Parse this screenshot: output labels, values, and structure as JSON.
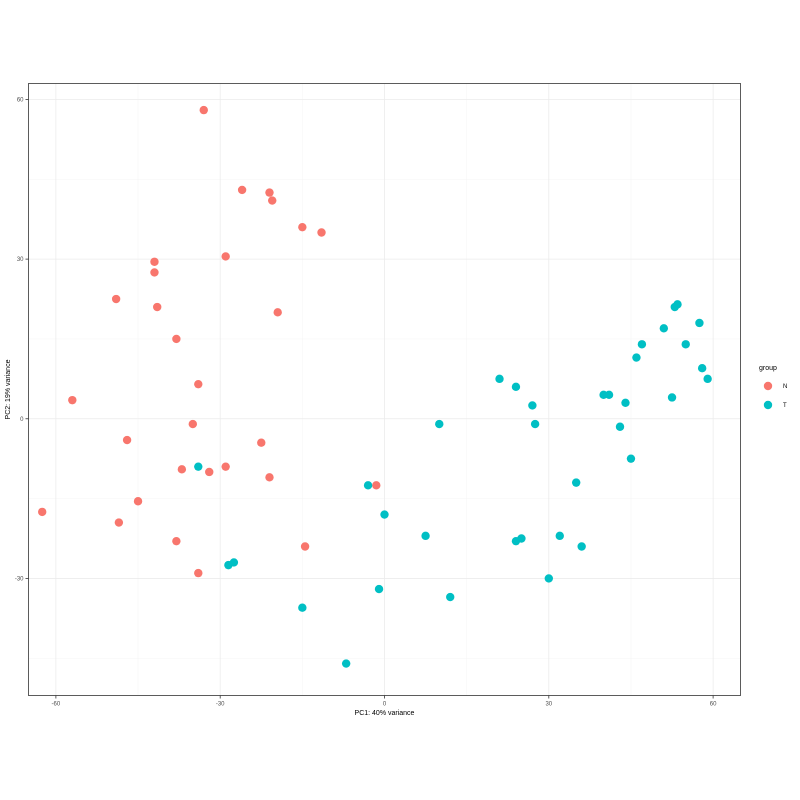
{
  "chart_data": {
    "type": "scatter",
    "xlabel": "PC1: 40% variance",
    "ylabel": "PC2: 19% variance",
    "xlim": [
      -65,
      65
    ],
    "ylim": [
      -52,
      63
    ],
    "x_ticks": [
      -60,
      -30,
      0,
      30,
      60
    ],
    "y_ticks": [
      60,
      30,
      0,
      -30
    ],
    "grid": true,
    "legend": {
      "title": "group",
      "position": "right"
    },
    "series": [
      {
        "name": "N",
        "color": "#F8766D",
        "points": [
          [
            -33,
            58
          ],
          [
            -26,
            43
          ],
          [
            -21,
            42.5
          ],
          [
            -20.5,
            41
          ],
          [
            -15,
            36
          ],
          [
            -11.5,
            35
          ],
          [
            -29,
            30.5
          ],
          [
            -42,
            29.5
          ],
          [
            -42,
            27.5
          ],
          [
            -49,
            22.5
          ],
          [
            -41.5,
            21
          ],
          [
            -19.5,
            20
          ],
          [
            -38,
            15
          ],
          [
            -34,
            6.5
          ],
          [
            -57,
            3.5
          ],
          [
            -35,
            -1
          ],
          [
            -47,
            -4
          ],
          [
            -22.5,
            -4.5
          ],
          [
            -37,
            -9.5
          ],
          [
            -29,
            -9
          ],
          [
            -32,
            -10
          ],
          [
            -21,
            -11
          ],
          [
            -1.5,
            -12.5
          ],
          [
            -45,
            -15.5
          ],
          [
            -62.5,
            -17.5
          ],
          [
            -48.5,
            -19.5
          ],
          [
            -38,
            -23
          ],
          [
            -14.5,
            -24
          ],
          [
            -34,
            -29
          ]
        ]
      },
      {
        "name": "T",
        "color": "#00BFC4",
        "points": [
          [
            -34,
            -9
          ],
          [
            -27.5,
            -27
          ],
          [
            -28.5,
            -27.5
          ],
          [
            -15,
            -35.5
          ],
          [
            -7,
            -46
          ],
          [
            -3,
            -12.5
          ],
          [
            0,
            -18
          ],
          [
            -1,
            -32
          ],
          [
            7.5,
            -22
          ],
          [
            12,
            -33.5
          ],
          [
            10,
            -1
          ],
          [
            21,
            7.5
          ],
          [
            24,
            6
          ],
          [
            27,
            2.5
          ],
          [
            27.5,
            -1
          ],
          [
            24,
            -23
          ],
          [
            25,
            -22.5
          ],
          [
            30,
            -30
          ],
          [
            32,
            -22
          ],
          [
            35,
            -12
          ],
          [
            36,
            -24
          ],
          [
            40,
            4.5
          ],
          [
            41,
            4.5
          ],
          [
            43,
            -1.5
          ],
          [
            44,
            3
          ],
          [
            45,
            -7.5
          ],
          [
            46,
            11.5
          ],
          [
            47,
            14
          ],
          [
            51,
            17
          ],
          [
            53,
            21
          ],
          [
            53.5,
            21.5
          ],
          [
            52.5,
            4
          ],
          [
            55,
            14
          ],
          [
            57.5,
            18
          ],
          [
            58,
            9.5
          ],
          [
            59,
            7.5
          ]
        ]
      }
    ]
  }
}
